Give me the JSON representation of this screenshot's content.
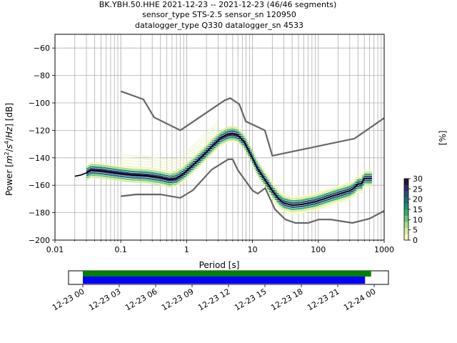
{
  "chart_data": {
    "type": "heatmap",
    "title_lines": [
      "BK.YBH.50.HHE   2021-12-23 -- 2021-12-23  (46/46 segments)",
      "sensor_type STS-2.5 sensor_sn 120950",
      "datalogger_type Q330 datalogger_sn 4533"
    ],
    "xlabel": "Period [s]",
    "ylabel_parts": [
      "Power [",
      "m",
      "2",
      "/",
      "s",
      "4",
      "/",
      "Hz",
      "] [dB]"
    ],
    "x_scale": "log",
    "xlim": [
      0.01,
      1000
    ],
    "ylim": [
      -200,
      -50
    ],
    "x_ticks": [
      {
        "v": 0.01,
        "label": "0.01"
      },
      {
        "v": 0.1,
        "label": "0.1"
      },
      {
        "v": 1,
        "label": "1"
      },
      {
        "v": 10,
        "label": "10"
      },
      {
        "v": 100,
        "label": "100"
      },
      {
        "v": 1000,
        "label": "1000"
      }
    ],
    "y_ticks": [
      {
        "v": -60,
        "label": "−60"
      },
      {
        "v": -80,
        "label": "−80"
      },
      {
        "v": -100,
        "label": "−100"
      },
      {
        "v": -120,
        "label": "−120"
      },
      {
        "v": -140,
        "label": "−140"
      },
      {
        "v": -160,
        "label": "−160"
      },
      {
        "v": -180,
        "label": "−180"
      },
      {
        "v": -200,
        "label": "−200"
      }
    ],
    "grid": true,
    "colorbar": {
      "label": "[%]",
      "range": [
        0,
        30
      ],
      "ticks": [
        {
          "v": 0,
          "label": "0"
        },
        {
          "v": 5,
          "label": "5"
        },
        {
          "v": 10,
          "label": "10"
        },
        {
          "v": 15,
          "label": "15"
        },
        {
          "v": 20,
          "label": "20"
        },
        {
          "v": 25,
          "label": "25"
        },
        {
          "v": 30,
          "label": "30"
        }
      ],
      "colors": [
        "#f7f9c2",
        "#d9ee9c",
        "#a6dc8a",
        "#6cc77a",
        "#34ad6d",
        "#1f8e73",
        "#1f6c78",
        "#245079",
        "#2c2f6b",
        "#24133f"
      ]
    },
    "nhnm": [
      [
        0.1,
        -91.5
      ],
      [
        0.22,
        -97.4
      ],
      [
        0.32,
        -110.5
      ],
      [
        0.8,
        -120
      ],
      [
        3.8,
        -98
      ],
      [
        4.6,
        -96.5
      ],
      [
        6.3,
        -101
      ],
      [
        7.9,
        -113.5
      ],
      [
        15.4,
        -120
      ],
      [
        20,
        -138.5
      ],
      [
        354.8,
        -126
      ],
      [
        1000,
        -111
      ]
    ],
    "nlnm": [
      [
        0.1,
        -168
      ],
      [
        0.17,
        -166.7
      ],
      [
        0.4,
        -166.7
      ],
      [
        0.8,
        -169.2
      ],
      [
        1.24,
        -163.7
      ],
      [
        2.4,
        -148.6
      ],
      [
        4.3,
        -141.1
      ],
      [
        5,
        -141.1
      ],
      [
        6,
        -149
      ],
      [
        10,
        -163.8
      ],
      [
        12,
        -166.2
      ],
      [
        15.6,
        -162.1
      ],
      [
        21.9,
        -177.5
      ],
      [
        31.6,
        -185
      ],
      [
        45,
        -187.5
      ],
      [
        70,
        -187.5
      ],
      [
        101,
        -185
      ],
      [
        154,
        -185
      ],
      [
        328,
        -187.5
      ],
      [
        600,
        -184.4
      ],
      [
        1000,
        -178.7
      ]
    ],
    "median": [
      [
        0.02,
        -153.5
      ],
      [
        0.025,
        -152.5
      ],
      [
        0.03,
        -151
      ],
      [
        0.035,
        -149
      ],
      [
        0.05,
        -149.5
      ],
      [
        0.07,
        -150.5
      ],
      [
        0.1,
        -151.5
      ],
      [
        0.15,
        -152.5
      ],
      [
        0.25,
        -153
      ],
      [
        0.4,
        -154.5
      ],
      [
        0.55,
        -156
      ],
      [
        0.7,
        -155
      ],
      [
        0.9,
        -151.5
      ],
      [
        1.2,
        -146
      ],
      [
        1.8,
        -138
      ],
      [
        2.5,
        -131
      ],
      [
        3.3,
        -125.5
      ],
      [
        4.2,
        -123
      ],
      [
        5,
        -122.5
      ],
      [
        6,
        -123.5
      ],
      [
        7.5,
        -128.5
      ],
      [
        9.5,
        -138
      ],
      [
        12,
        -148
      ],
      [
        15,
        -155
      ],
      [
        20,
        -164
      ],
      [
        25,
        -170
      ],
      [
        30,
        -173
      ],
      [
        40,
        -174.5
      ],
      [
        55,
        -174
      ],
      [
        70,
        -173
      ],
      [
        90,
        -172
      ],
      [
        120,
        -170
      ],
      [
        160,
        -168
      ],
      [
        220,
        -166
      ],
      [
        300,
        -164
      ],
      [
        350,
        -162
      ],
      [
        400,
        -159
      ],
      [
        450,
        -159
      ],
      [
        500,
        -155
      ],
      [
        650,
        -155
      ]
    ],
    "time_axis": {
      "tick_labels": [
        "12-23 00",
        "12-23 03",
        "12-23 06",
        "12-23 09",
        "12-23 12",
        "12-23 15",
        "12-23 18",
        "12-23 21",
        "12-24 00"
      ],
      "data_range_hours": [
        0,
        23.75
      ],
      "psd_range_hours": [
        0,
        23.25
      ],
      "data_color": "#008000",
      "psd_color": "#0000ff"
    }
  }
}
